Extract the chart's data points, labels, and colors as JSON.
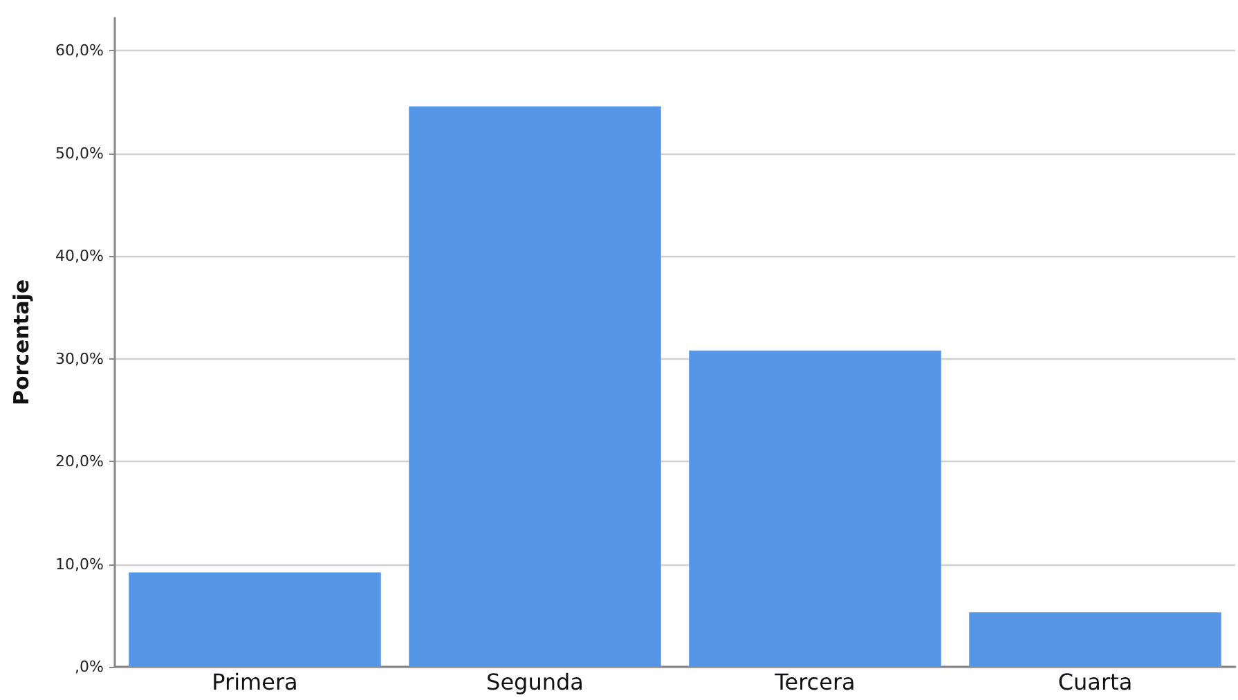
{
  "chart_data": {
    "type": "bar",
    "ylabel": "Porcentaje",
    "categories": [
      "Primera",
      "Segunda",
      "Tercera",
      "Cuarta"
    ],
    "values": [
      9.2,
      54.6,
      30.8,
      5.3
    ],
    "color": "#5596e6",
    "ylim": [
      0,
      63.2
    ],
    "yticks": [
      {
        "value": 0,
        "label": ",0%"
      },
      {
        "value": 10,
        "label": "10,0%"
      },
      {
        "value": 20,
        "label": "20,0%"
      },
      {
        "value": 30,
        "label": "30,0%"
      },
      {
        "value": 40,
        "label": "40,0%"
      },
      {
        "value": 50,
        "label": "50,0%"
      },
      {
        "value": 60,
        "label": "60,0%"
      }
    ],
    "grid": "y"
  }
}
